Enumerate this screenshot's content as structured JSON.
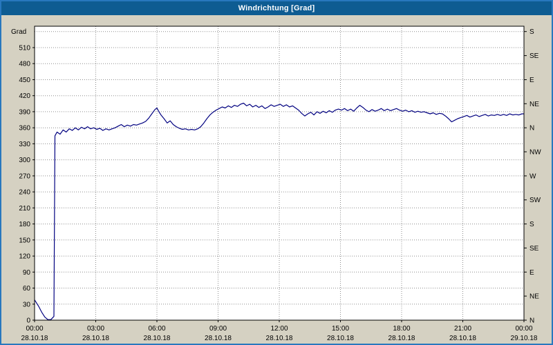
{
  "window": {
    "title": "Windrichtung [Grad]"
  },
  "colors": {
    "frame_blue": "#2878be",
    "titlebar_blue": "#0e5c92",
    "title_text": "#ffffff",
    "background_beige": "#d5d1c2",
    "plot_background": "#ffffff",
    "grid_gray": "#8c8c8c",
    "axis_black": "#000000",
    "line_navy": "#000080"
  },
  "chart_data": {
    "type": "line",
    "title": "Windrichtung [Grad]",
    "ylabel_left": "Grad",
    "xlabel": "",
    "grid": true,
    "xlim_hours": [
      0,
      24
    ],
    "ylim": [
      0,
      550
    ],
    "y_left_ticks": [
      0,
      30,
      60,
      90,
      120,
      150,
      180,
      210,
      240,
      270,
      300,
      330,
      360,
      390,
      420,
      450,
      480,
      510
    ],
    "grid_y": [
      30,
      60,
      90,
      120,
      150,
      180,
      210,
      240,
      270,
      300,
      330,
      360,
      390,
      420,
      450,
      480,
      510,
      540
    ],
    "y_right_labels": [
      {
        "value": 0,
        "label": "N"
      },
      {
        "value": 45,
        "label": "NE"
      },
      {
        "value": 90,
        "label": "E"
      },
      {
        "value": 135,
        "label": "SE"
      },
      {
        "value": 180,
        "label": "S"
      },
      {
        "value": 225,
        "label": "SW"
      },
      {
        "value": 270,
        "label": "W"
      },
      {
        "value": 315,
        "label": "NW"
      },
      {
        "value": 360,
        "label": "N"
      },
      {
        "value": 405,
        "label": "NE"
      },
      {
        "value": 450,
        "label": "E"
      },
      {
        "value": 495,
        "label": "SE"
      },
      {
        "value": 540,
        "label": "S"
      }
    ],
    "x_ticks": [
      {
        "hour": 0,
        "time": "00:00",
        "date": "28.10.18"
      },
      {
        "hour": 3,
        "time": "03:00",
        "date": "28.10.18"
      },
      {
        "hour": 6,
        "time": "06:00",
        "date": "28.10.18"
      },
      {
        "hour": 9,
        "time": "09:00",
        "date": "28.10.18"
      },
      {
        "hour": 12,
        "time": "12:00",
        "date": "28.10.18"
      },
      {
        "hour": 15,
        "time": "15:00",
        "date": "28.10.18"
      },
      {
        "hour": 18,
        "time": "18:00",
        "date": "28.10.18"
      },
      {
        "hour": 21,
        "time": "21:00",
        "date": "28.10.18"
      },
      {
        "hour": 24,
        "time": "00:00",
        "date": "29.10.18"
      }
    ],
    "series": [
      {
        "name": "Windrichtung",
        "color": "#000080",
        "points": [
          [
            0,
            38
          ],
          [
            0.2,
            26
          ],
          [
            0.35,
            15
          ],
          [
            0.5,
            6
          ],
          [
            0.65,
            1
          ],
          [
            0.8,
            1
          ],
          [
            0.95,
            7
          ],
          [
            1,
            345
          ],
          [
            1.1,
            352
          ],
          [
            1.25,
            348
          ],
          [
            1.4,
            356
          ],
          [
            1.55,
            352
          ],
          [
            1.7,
            358
          ],
          [
            1.85,
            355
          ],
          [
            2,
            360
          ],
          [
            2.15,
            356
          ],
          [
            2.3,
            361
          ],
          [
            2.45,
            358
          ],
          [
            2.6,
            362
          ],
          [
            2.75,
            358
          ],
          [
            2.9,
            360
          ],
          [
            3.05,
            357
          ],
          [
            3.2,
            359
          ],
          [
            3.35,
            355
          ],
          [
            3.5,
            358
          ],
          [
            3.65,
            356
          ],
          [
            3.8,
            358
          ],
          [
            3.95,
            360
          ],
          [
            4.1,
            363
          ],
          [
            4.25,
            366
          ],
          [
            4.4,
            362
          ],
          [
            4.55,
            365
          ],
          [
            4.7,
            363
          ],
          [
            4.85,
            366
          ],
          [
            5,
            365
          ],
          [
            5.15,
            367
          ],
          [
            5.3,
            369
          ],
          [
            5.45,
            372
          ],
          [
            5.6,
            378
          ],
          [
            5.75,
            386
          ],
          [
            5.9,
            394
          ],
          [
            6,
            397
          ],
          [
            6.1,
            390
          ],
          [
            6.2,
            384
          ],
          [
            6.35,
            377
          ],
          [
            6.5,
            369
          ],
          [
            6.65,
            373
          ],
          [
            6.8,
            366
          ],
          [
            6.95,
            362
          ],
          [
            7.1,
            359
          ],
          [
            7.25,
            357
          ],
          [
            7.4,
            358
          ],
          [
            7.55,
            356
          ],
          [
            7.7,
            357
          ],
          [
            7.85,
            356
          ],
          [
            8,
            358
          ],
          [
            8.15,
            362
          ],
          [
            8.3,
            369
          ],
          [
            8.45,
            377
          ],
          [
            8.6,
            384
          ],
          [
            8.75,
            389
          ],
          [
            8.9,
            393
          ],
          [
            9.05,
            396
          ],
          [
            9.2,
            399
          ],
          [
            9.35,
            397
          ],
          [
            9.5,
            401
          ],
          [
            9.65,
            398
          ],
          [
            9.8,
            402
          ],
          [
            9.95,
            400
          ],
          [
            10.1,
            404
          ],
          [
            10.25,
            406
          ],
          [
            10.4,
            401
          ],
          [
            10.55,
            404
          ],
          [
            10.7,
            399
          ],
          [
            10.85,
            402
          ],
          [
            11,
            398
          ],
          [
            11.15,
            401
          ],
          [
            11.3,
            396
          ],
          [
            11.45,
            399
          ],
          [
            11.6,
            403
          ],
          [
            11.75,
            400
          ],
          [
            11.9,
            402
          ],
          [
            12.05,
            404
          ],
          [
            12.2,
            400
          ],
          [
            12.35,
            403
          ],
          [
            12.5,
            399
          ],
          [
            12.65,
            401
          ],
          [
            12.8,
            397
          ],
          [
            12.95,
            393
          ],
          [
            13.1,
            387
          ],
          [
            13.25,
            382
          ],
          [
            13.4,
            386
          ],
          [
            13.55,
            389
          ],
          [
            13.7,
            384
          ],
          [
            13.85,
            390
          ],
          [
            14,
            387
          ],
          [
            14.15,
            391
          ],
          [
            14.3,
            388
          ],
          [
            14.45,
            392
          ],
          [
            14.6,
            389
          ],
          [
            14.75,
            393
          ],
          [
            14.9,
            395
          ],
          [
            15.05,
            393
          ],
          [
            15.2,
            396
          ],
          [
            15.35,
            392
          ],
          [
            15.5,
            395
          ],
          [
            15.65,
            391
          ],
          [
            15.8,
            397
          ],
          [
            15.95,
            402
          ],
          [
            16.1,
            398
          ],
          [
            16.25,
            393
          ],
          [
            16.4,
            390
          ],
          [
            16.55,
            394
          ],
          [
            16.7,
            391
          ],
          [
            16.85,
            393
          ],
          [
            17,
            396
          ],
          [
            17.15,
            392
          ],
          [
            17.3,
            395
          ],
          [
            17.45,
            392
          ],
          [
            17.6,
            394
          ],
          [
            17.75,
            396
          ],
          [
            17.9,
            393
          ],
          [
            18.05,
            391
          ],
          [
            18.2,
            393
          ],
          [
            18.35,
            390
          ],
          [
            18.5,
            392
          ],
          [
            18.65,
            389
          ],
          [
            18.8,
            391
          ],
          [
            18.95,
            389
          ],
          [
            19.1,
            390
          ],
          [
            19.25,
            388
          ],
          [
            19.4,
            386
          ],
          [
            19.55,
            388
          ],
          [
            19.7,
            385
          ],
          [
            19.85,
            387
          ],
          [
            20,
            386
          ],
          [
            20.15,
            382
          ],
          [
            20.3,
            377
          ],
          [
            20.45,
            371
          ],
          [
            20.6,
            374
          ],
          [
            20.75,
            377
          ],
          [
            20.9,
            379
          ],
          [
            21.05,
            381
          ],
          [
            21.2,
            383
          ],
          [
            21.35,
            380
          ],
          [
            21.5,
            382
          ],
          [
            21.65,
            384
          ],
          [
            21.8,
            381
          ],
          [
            21.95,
            383
          ],
          [
            22.1,
            385
          ],
          [
            22.25,
            382
          ],
          [
            22.4,
            384
          ],
          [
            22.55,
            383
          ],
          [
            22.7,
            385
          ],
          [
            22.85,
            383
          ],
          [
            23,
            385
          ],
          [
            23.15,
            383
          ],
          [
            23.3,
            386
          ],
          [
            23.45,
            384
          ],
          [
            23.6,
            385
          ],
          [
            23.75,
            384
          ],
          [
            23.9,
            386
          ],
          [
            24,
            386
          ]
        ]
      }
    ],
    "legend": "none"
  }
}
